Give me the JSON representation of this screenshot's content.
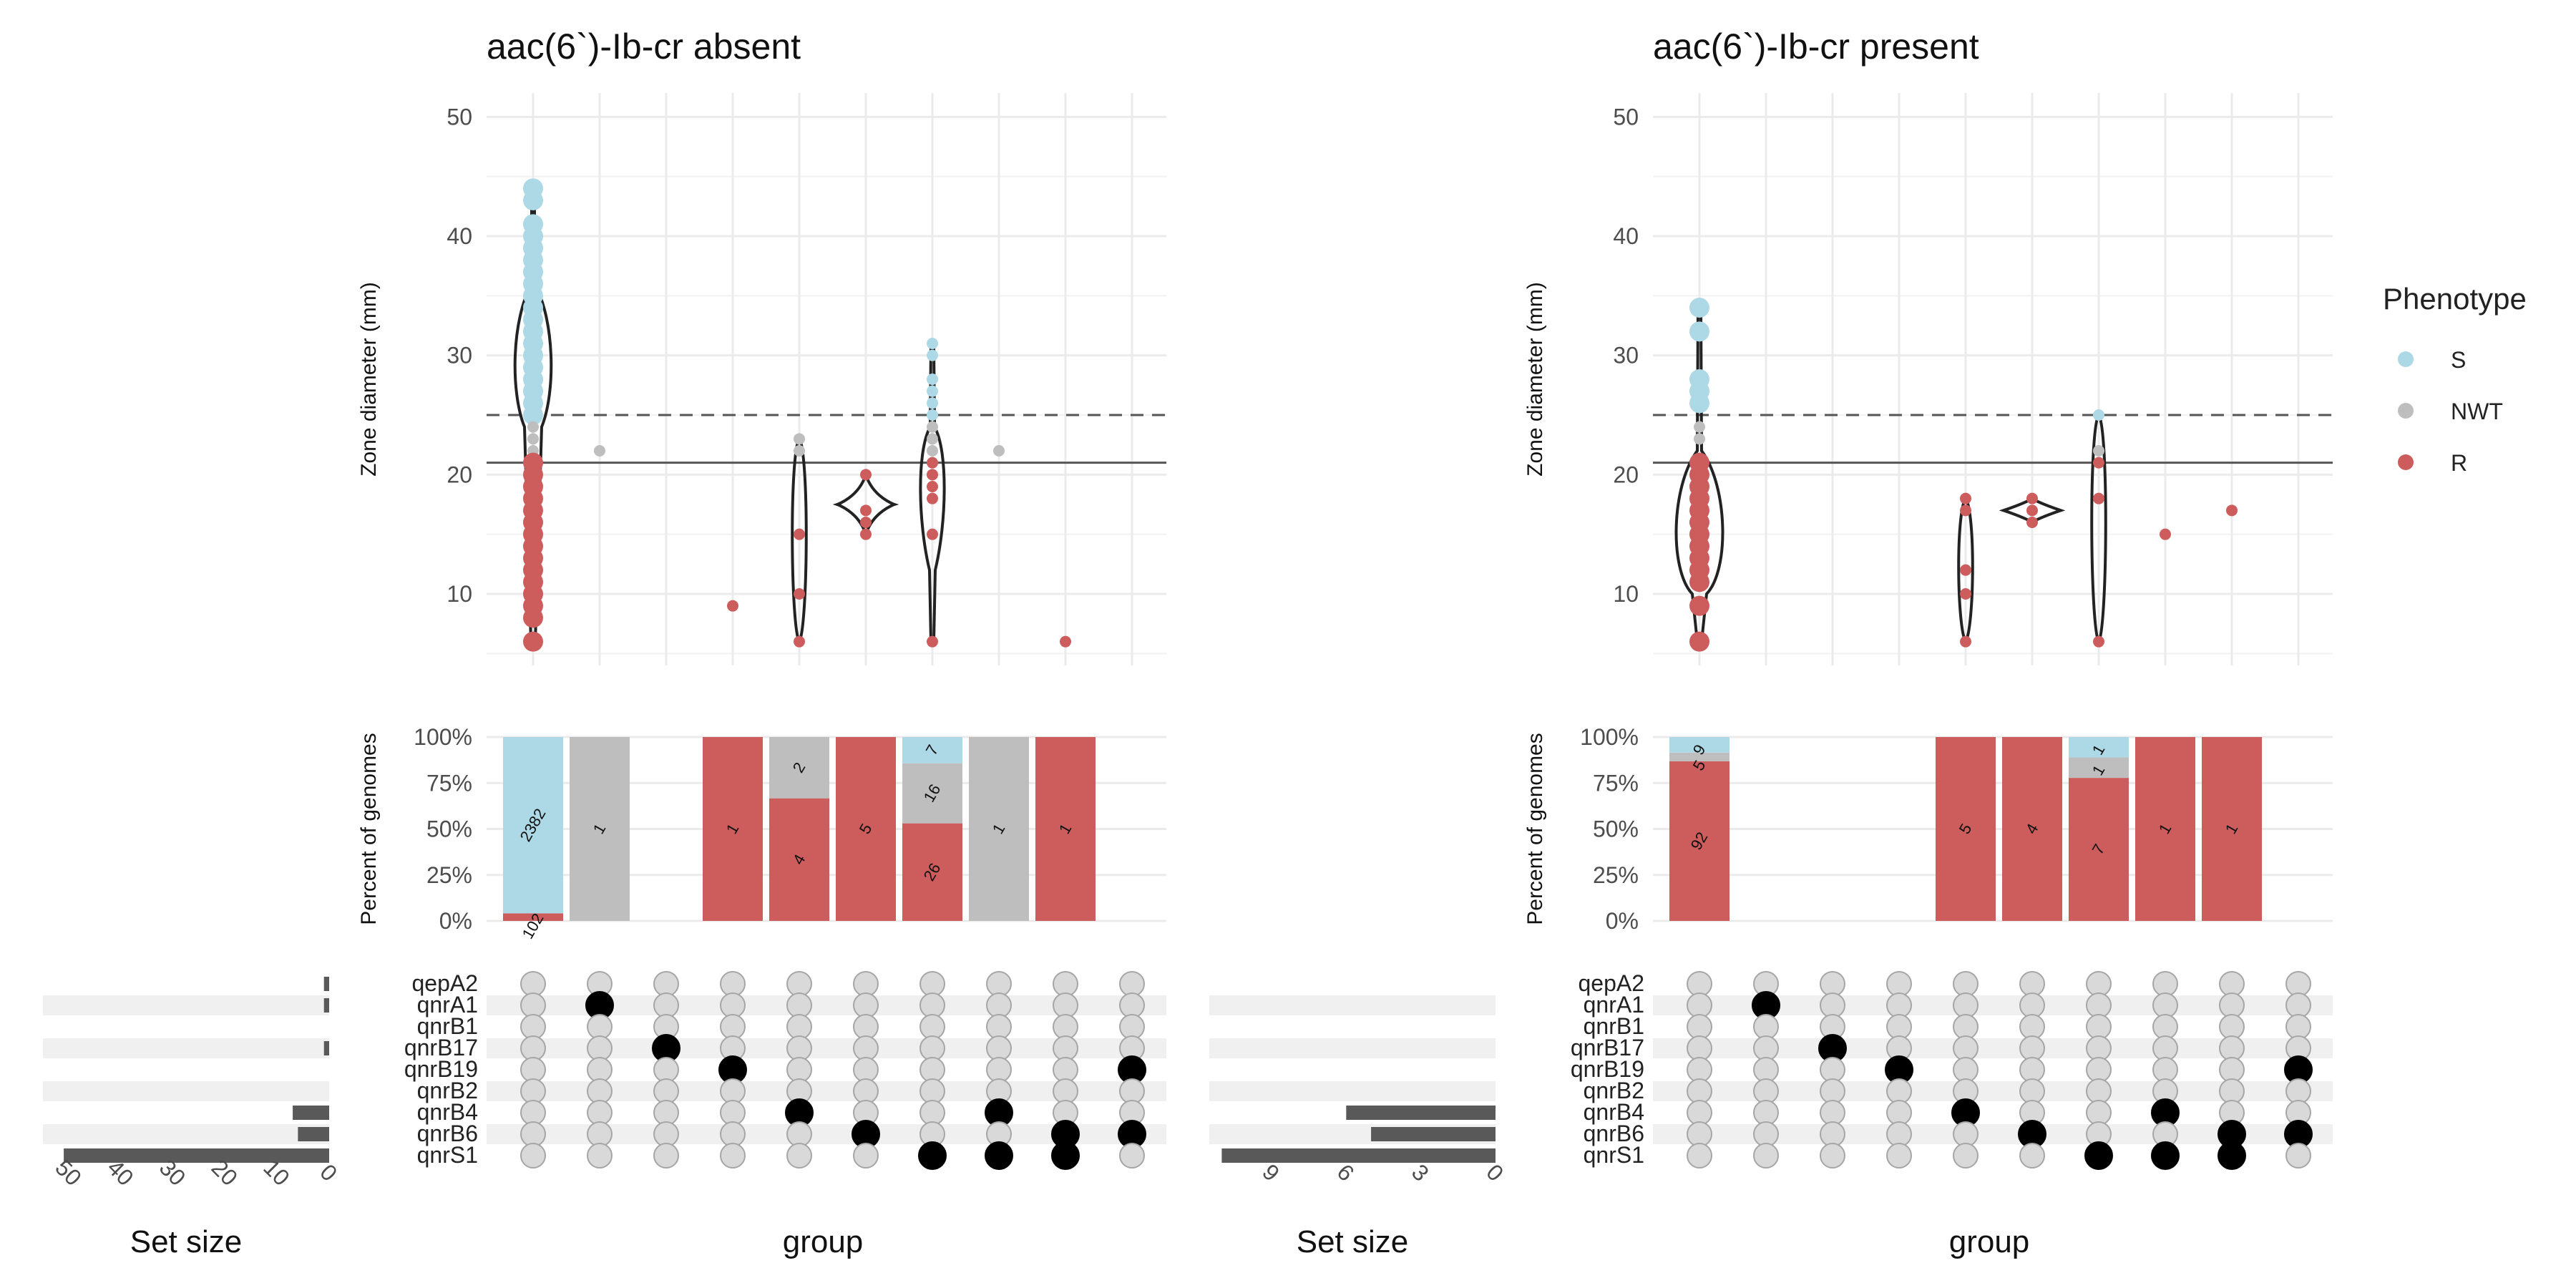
{
  "legend": {
    "title": "Phenotype",
    "items": [
      {
        "label": "S",
        "color": "#add8e6"
      },
      {
        "label": "NWT",
        "color": "#bebebe"
      },
      {
        "label": "R",
        "color": "#cd5c5c"
      }
    ]
  },
  "axis_labels": {
    "zone_ylabel": "Zone diameter (mm)",
    "percent_ylabel": "Percent of genomes",
    "group_xlabel": "group",
    "setsize_xlabel": "Set size"
  },
  "chart_data": [
    {
      "type": "upset",
      "title": "aac(6`)-Ib-cr absent",
      "genes": [
        "qepA2",
        "qnrA1",
        "qnrB1",
        "qnrB17",
        "qnrB19",
        "qnrB2",
        "qnrB4",
        "qnrB6",
        "qnrS1"
      ],
      "set_sizes": [
        1,
        1,
        0,
        1,
        0,
        0,
        7,
        6,
        51
      ],
      "set_size_ticks": [
        50,
        40,
        30,
        20,
        10,
        0
      ],
      "set_size_xlim": [
        0,
        55
      ],
      "zone_ylim": [
        4,
        52
      ],
      "zone_yticks": [
        10,
        20,
        30,
        40,
        50
      ],
      "breakpoints": {
        "dashed": 25,
        "solid": 21
      },
      "percent_ticks": [
        "100%",
        "75%",
        "50%",
        "25%",
        "0%"
      ],
      "groups": [
        {
          "members": [],
          "bars": [
            {
              "p": "R",
              "n": 102
            },
            {
              "p": "NWT",
              "n": 0
            },
            {
              "p": "S",
              "n": 2382
            }
          ],
          "labels": {
            "S": "2382",
            "R": "102"
          },
          "violin": {
            "min": 6,
            "max": 44,
            "shape": "wide"
          },
          "points": [
            [
              44,
              "S"
            ],
            [
              43,
              "S"
            ],
            [
              41,
              "S"
            ],
            [
              40,
              "S"
            ],
            [
              39,
              "S"
            ],
            [
              38,
              "S"
            ],
            [
              37,
              "S"
            ],
            [
              36,
              "S"
            ],
            [
              35,
              "S"
            ],
            [
              34,
              "S"
            ],
            [
              33,
              "S"
            ],
            [
              32,
              "S"
            ],
            [
              31,
              "S"
            ],
            [
              30,
              "S"
            ],
            [
              29,
              "S"
            ],
            [
              28,
              "S"
            ],
            [
              27,
              "S"
            ],
            [
              26,
              "S"
            ],
            [
              25,
              "S"
            ],
            [
              24,
              "NWT"
            ],
            [
              23,
              "NWT"
            ],
            [
              22,
              "NWT"
            ],
            [
              21,
              "R"
            ],
            [
              20,
              "R"
            ],
            [
              19,
              "R"
            ],
            [
              18,
              "R"
            ],
            [
              17,
              "R"
            ],
            [
              16,
              "R"
            ],
            [
              15,
              "R"
            ],
            [
              14,
              "R"
            ],
            [
              13,
              "R"
            ],
            [
              12,
              "R"
            ],
            [
              11,
              "R"
            ],
            [
              10,
              "R"
            ],
            [
              9,
              "R"
            ],
            [
              8,
              "R"
            ],
            [
              6,
              "R"
            ]
          ]
        },
        {
          "members": [
            "qnrA1"
          ],
          "bars": [
            {
              "p": "NWT",
              "n": 1
            }
          ],
          "labels": {
            "NWT": "1"
          },
          "points": [
            [
              22,
              "NWT"
            ]
          ]
        },
        {
          "members": [
            "qnrB17"
          ],
          "bars": [],
          "labels": {},
          "points": []
        },
        {
          "members": [
            "qnrB19"
          ],
          "bars": [
            {
              "p": "R",
              "n": 1
            }
          ],
          "labels": {
            "R": "1"
          },
          "points": [
            [
              9,
              "R"
            ]
          ]
        },
        {
          "members": [
            "qnrB4"
          ],
          "bars": [
            {
              "p": "R",
              "n": 4
            },
            {
              "p": "NWT",
              "n": 2
            }
          ],
          "labels": {
            "R": "4",
            "NWT": "2"
          },
          "violin": {
            "min": 6,
            "max": 23,
            "shape": "thin"
          },
          "points": [
            [
              23,
              "NWT"
            ],
            [
              22,
              "NWT"
            ],
            [
              15,
              "R"
            ],
            [
              10,
              "R"
            ],
            [
              6,
              "R"
            ]
          ]
        },
        {
          "members": [
            "qnrB6"
          ],
          "bars": [
            {
              "p": "R",
              "n": 5
            }
          ],
          "labels": {
            "R": "5"
          },
          "violin": {
            "min": 15,
            "max": 20,
            "shape": "diamond"
          },
          "points": [
            [
              20,
              "R"
            ],
            [
              17,
              "R"
            ],
            [
              16,
              "R"
            ],
            [
              15,
              "R"
            ]
          ]
        },
        {
          "members": [
            "qnrS1"
          ],
          "bars": [
            {
              "p": "R",
              "n": 26
            },
            {
              "p": "NWT",
              "n": 16
            },
            {
              "p": "S",
              "n": 7
            }
          ],
          "labels": {
            "R": "26",
            "NWT": "16",
            "S": "7"
          },
          "violin": {
            "min": 6,
            "max": 31,
            "shape": "mid"
          },
          "points": [
            [
              31,
              "S"
            ],
            [
              30,
              "S"
            ],
            [
              28,
              "S"
            ],
            [
              27,
              "S"
            ],
            [
              26,
              "S"
            ],
            [
              25,
              "S"
            ],
            [
              24,
              "NWT"
            ],
            [
              23,
              "NWT"
            ],
            [
              22,
              "NWT"
            ],
            [
              21,
              "R"
            ],
            [
              20,
              "R"
            ],
            [
              19,
              "R"
            ],
            [
              18,
              "R"
            ],
            [
              15,
              "R"
            ],
            [
              6,
              "R"
            ]
          ]
        },
        {
          "members": [
            "qnrB4",
            "qnrS1"
          ],
          "bars": [
            {
              "p": "NWT",
              "n": 1
            }
          ],
          "labels": {
            "NWT": "1"
          },
          "points": [
            [
              22,
              "NWT"
            ]
          ]
        },
        {
          "members": [
            "qnrB6",
            "qnrS1"
          ],
          "bars": [
            {
              "p": "R",
              "n": 1
            }
          ],
          "labels": {
            "R": "1"
          },
          "points": [
            [
              6,
              "R"
            ]
          ]
        },
        {
          "members": [
            "qnrB19",
            "qnrB6"
          ],
          "bars": [],
          "labels": {},
          "points": []
        }
      ]
    },
    {
      "type": "upset",
      "title": "aac(6`)-Ib-cr present",
      "genes": [
        "qepA2",
        "qnrA1",
        "qnrB1",
        "qnrB17",
        "qnrB19",
        "qnrB2",
        "qnrB4",
        "qnrB6",
        "qnrS1"
      ],
      "set_sizes": [
        0,
        0,
        0,
        0,
        0,
        0,
        6,
        5,
        11
      ],
      "set_size_ticks": [
        9,
        6,
        3,
        0
      ],
      "set_size_xlim": [
        0,
        11.5
      ],
      "zone_ylim": [
        4,
        52
      ],
      "zone_yticks": [
        10,
        20,
        30,
        40,
        50
      ],
      "breakpoints": {
        "dashed": 25,
        "solid": 21
      },
      "percent_ticks": [
        "100%",
        "75%",
        "50%",
        "25%",
        "0%"
      ],
      "groups": [
        {
          "members": [],
          "bars": [
            {
              "p": "R",
              "n": 92
            },
            {
              "p": "NWT",
              "n": 5
            },
            {
              "p": "S",
              "n": 9
            }
          ],
          "labels": {
            "R": "92",
            "S": "9",
            "NWT": "5"
          },
          "violin": {
            "min": 6,
            "max": 34,
            "shape": "fatlow"
          },
          "points": [
            [
              34,
              "S"
            ],
            [
              32,
              "S"
            ],
            [
              28,
              "S"
            ],
            [
              27,
              "S"
            ],
            [
              26,
              "S"
            ],
            [
              24,
              "NWT"
            ],
            [
              23,
              "NWT"
            ],
            [
              21,
              "R"
            ],
            [
              20,
              "R"
            ],
            [
              19,
              "R"
            ],
            [
              18,
              "R"
            ],
            [
              17,
              "R"
            ],
            [
              16,
              "R"
            ],
            [
              15,
              "R"
            ],
            [
              14,
              "R"
            ],
            [
              13,
              "R"
            ],
            [
              12,
              "R"
            ],
            [
              11,
              "R"
            ],
            [
              9,
              "R"
            ],
            [
              6,
              "R"
            ]
          ]
        },
        {
          "members": [
            "qnrA1"
          ],
          "bars": [],
          "labels": {},
          "points": []
        },
        {
          "members": [
            "qnrB17"
          ],
          "bars": [],
          "labels": {},
          "points": []
        },
        {
          "members": [
            "qnrB19"
          ],
          "bars": [],
          "labels": {},
          "points": []
        },
        {
          "members": [
            "qnrB4"
          ],
          "bars": [
            {
              "p": "R",
              "n": 5
            }
          ],
          "labels": {
            "R": "5"
          },
          "violin": {
            "min": 6,
            "max": 18,
            "shape": "thin"
          },
          "points": [
            [
              18,
              "R"
            ],
            [
              17,
              "R"
            ],
            [
              12,
              "R"
            ],
            [
              10,
              "R"
            ],
            [
              6,
              "R"
            ]
          ]
        },
        {
          "members": [
            "qnrB6"
          ],
          "bars": [
            {
              "p": "R",
              "n": 4
            }
          ],
          "labels": {
            "R": "4"
          },
          "violin": {
            "min": 16,
            "max": 18,
            "shape": "diamond"
          },
          "points": [
            [
              18,
              "R"
            ],
            [
              17,
              "R"
            ],
            [
              16,
              "R"
            ]
          ]
        },
        {
          "members": [
            "qnrS1"
          ],
          "bars": [
            {
              "p": "R",
              "n": 7
            },
            {
              "p": "NWT",
              "n": 1
            },
            {
              "p": "S",
              "n": 1
            }
          ],
          "labels": {
            "R": "7",
            "NWT": "1",
            "S": "1"
          },
          "violin": {
            "min": 6,
            "max": 25,
            "shape": "thin"
          },
          "points": [
            [
              25,
              "S"
            ],
            [
              22,
              "NWT"
            ],
            [
              21,
              "R"
            ],
            [
              18,
              "R"
            ],
            [
              6,
              "R"
            ]
          ]
        },
        {
          "members": [
            "qnrB4",
            "qnrS1"
          ],
          "bars": [
            {
              "p": "R",
              "n": 1
            }
          ],
          "labels": {
            "R": "1"
          },
          "points": [
            [
              15,
              "R"
            ]
          ]
        },
        {
          "members": [
            "qnrB6",
            "qnrS1"
          ],
          "bars": [
            {
              "p": "R",
              "n": 1
            }
          ],
          "labels": {
            "R": "1"
          },
          "points": [
            [
              17,
              "R"
            ]
          ]
        },
        {
          "members": [
            "qnrB19",
            "qnrB6"
          ],
          "bars": [],
          "labels": {},
          "points": []
        }
      ]
    }
  ]
}
